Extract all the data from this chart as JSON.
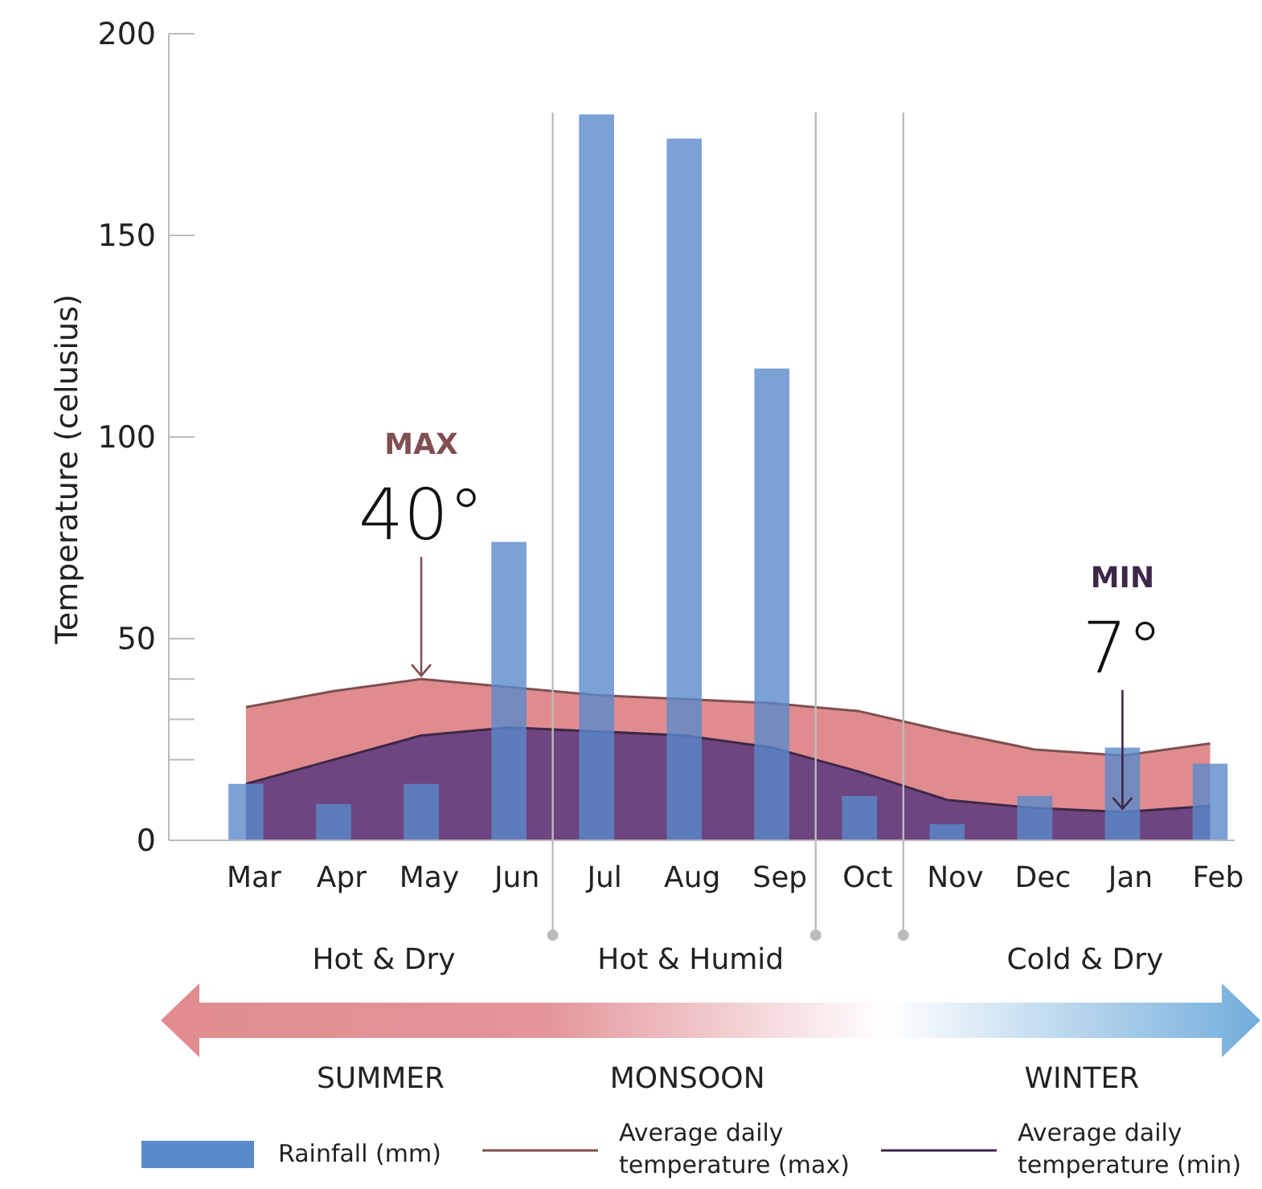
{
  "chart_data": {
    "type": "bar",
    "ylabel": "Temperature (celusius)",
    "categories": [
      "Mar",
      "Apr",
      "May",
      "Jun",
      "Jul",
      "Aug",
      "Sep",
      "Oct",
      "Nov",
      "Dec",
      "Jan",
      "Feb"
    ],
    "ylim": [
      0,
      200
    ],
    "yticks": [
      0,
      {
        "value": 20,
        "label": null
      },
      {
        "value": 30,
        "label": null
      },
      {
        "value": 40,
        "label": null
      },
      50,
      100,
      150,
      200
    ],
    "series": [
      {
        "type": "area",
        "name": "Average daily temperature (max)",
        "color": "#e08c8f",
        "values": [
          33,
          37,
          40,
          38,
          36,
          35,
          34,
          32,
          27,
          22.5,
          21,
          24
        ]
      },
      {
        "type": "area",
        "name": "Average daily temperature (min)",
        "color": "#6e4580",
        "values": [
          14,
          20,
          26,
          28,
          27,
          26,
          23,
          17,
          10,
          8,
          7,
          8.5
        ]
      },
      {
        "name": "Rainfall (mm)",
        "color": "#5a8acb",
        "values": [
          14,
          9,
          14,
          74,
          180,
          174,
          117,
          11,
          4,
          11,
          23,
          19
        ]
      }
    ],
    "annotations": [
      "MAX",
      {
        "text": "40°",
        "x": "May",
        "y": 40
      },
      "MIN",
      {
        "text": "7°",
        "x": "Jan",
        "y": 7
      },
      "Hot & Dry",
      "Hot & Humid",
      "Cold & Dry",
      "SUMMER",
      "MONSOON",
      "WINTER"
    ],
    "legend": "bottom",
    "grid": false
  }
}
